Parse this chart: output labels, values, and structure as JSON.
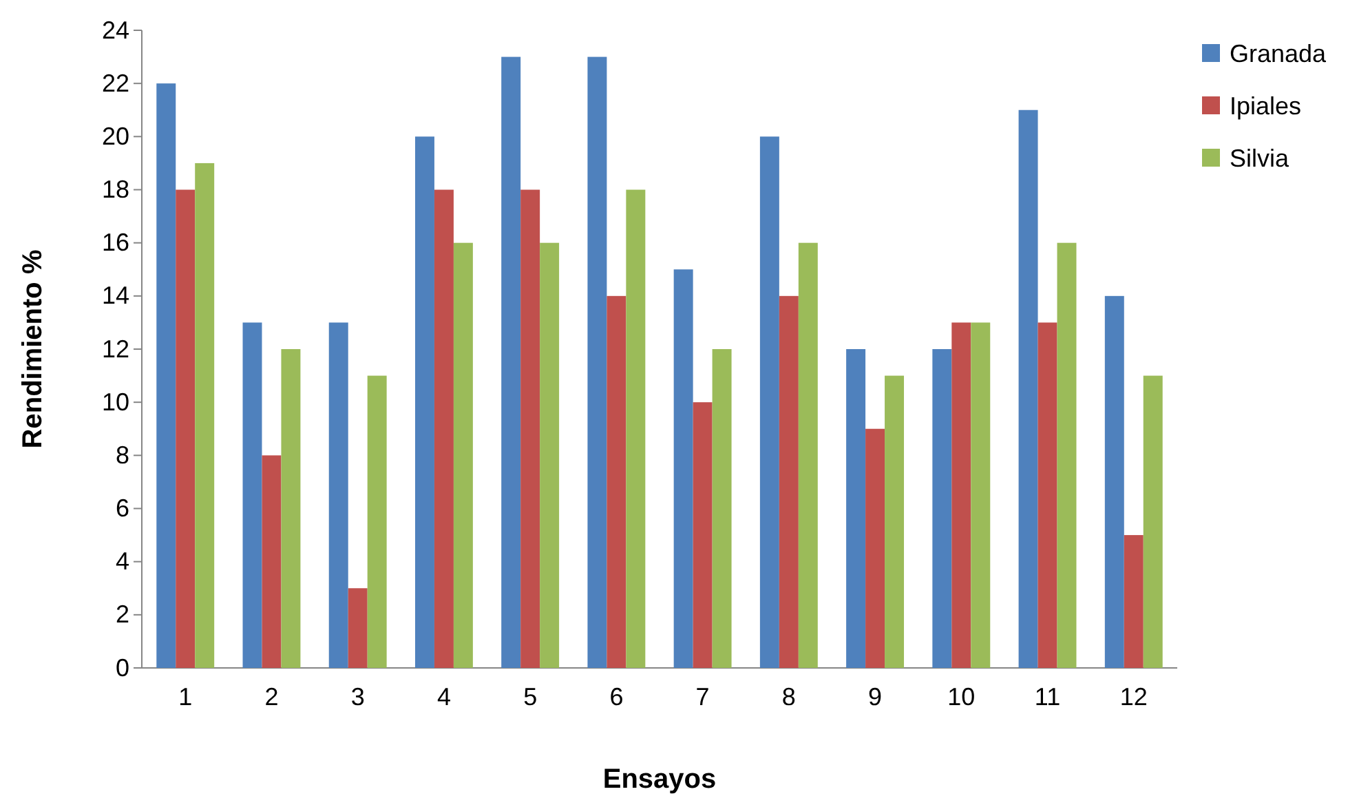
{
  "chart_data": {
    "type": "bar",
    "xlabel": "Ensayos",
    "ylabel": "Rendimiento %",
    "categories": [
      "1",
      "2",
      "3",
      "4",
      "5",
      "6",
      "7",
      "8",
      "9",
      "10",
      "11",
      "12"
    ],
    "series": [
      {
        "name": "Granada",
        "color": "#4f81bd",
        "values": [
          22,
          13,
          13,
          20,
          23,
          23,
          15,
          20,
          12,
          12,
          21,
          14
        ]
      },
      {
        "name": "Ipiales",
        "color": "#c0504d",
        "values": [
          18,
          8,
          3,
          18,
          18,
          14,
          10,
          14,
          9,
          13,
          13,
          5
        ]
      },
      {
        "name": "Silvia",
        "color": "#9bbb59",
        "values": [
          19,
          12,
          11,
          16,
          16,
          18,
          12,
          16,
          11,
          13,
          16,
          11
        ]
      }
    ],
    "ylim": [
      0,
      24
    ],
    "yticks": [
      0,
      2,
      4,
      6,
      8,
      10,
      12,
      14,
      16,
      18,
      20,
      22,
      24
    ],
    "grid": false,
    "legend": "top right"
  }
}
